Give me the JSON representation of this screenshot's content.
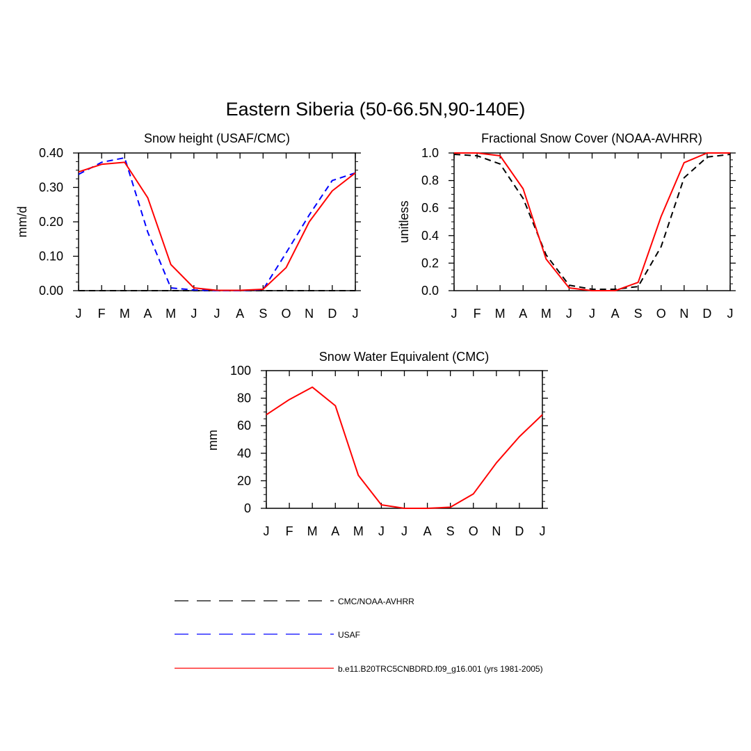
{
  "figure": {
    "title": "Eastern Siberia (50-66.5N,90-140E)"
  },
  "legend": {
    "entries": [
      {
        "label": "CMC/NOAA-AVHRR",
        "color": "#000000",
        "style": "dashed"
      },
      {
        "label": "USAF",
        "color": "#0000ff",
        "style": "dashed"
      },
      {
        "label": "b.e11.B20TRC5CNBDRD.f09_g16.001 (yrs 1981-2005)",
        "color": "#ff0000",
        "style": "solid"
      }
    ]
  },
  "chart_data": [
    {
      "type": "line",
      "title": "Snow height (USAF/CMC)",
      "xlabel": "",
      "ylabel": "mm/d",
      "categories": [
        "J",
        "F",
        "M",
        "A",
        "M",
        "J",
        "J",
        "A",
        "S",
        "O",
        "N",
        "D",
        "J"
      ],
      "ylim": [
        0,
        0.4
      ],
      "yticks": [
        "0.00",
        "0.10",
        "0.20",
        "0.30",
        "0.40"
      ],
      "series": [
        {
          "name": "CMC/NOAA-AVHRR",
          "color": "#000000",
          "style": "dashed",
          "values": [
            0,
            0,
            0,
            0,
            0,
            0,
            0,
            0,
            0,
            0,
            0,
            0,
            0
          ]
        },
        {
          "name": "USAF",
          "color": "#0000ff",
          "style": "dashed",
          "values": [
            0.338,
            0.373,
            0.386,
            0.17,
            0.008,
            0.002,
            0,
            0,
            0.003,
            0.11,
            0.22,
            0.32,
            0.342
          ]
        },
        {
          "name": "b.e11.B20TRC5CNBDRD.f09_g16.001 (yrs 1981-2005)",
          "color": "#ff0000",
          "style": "solid",
          "values": [
            0.345,
            0.367,
            0.373,
            0.27,
            0.076,
            0.008,
            0.001,
            0.001,
            0.004,
            0.067,
            0.2,
            0.29,
            0.342
          ]
        }
      ]
    },
    {
      "type": "line",
      "title": "Fractional Snow Cover (NOAA-AVHRR)",
      "xlabel": "",
      "ylabel": "unitless",
      "categories": [
        "J",
        "F",
        "M",
        "A",
        "M",
        "J",
        "J",
        "A",
        "S",
        "O",
        "N",
        "D",
        "J"
      ],
      "ylim": [
        0,
        1.0
      ],
      "yticks": [
        "0.0",
        "0.2",
        "0.4",
        "0.6",
        "0.8",
        "1.0"
      ],
      "series": [
        {
          "name": "CMC/NOAA-AVHRR",
          "color": "#000000",
          "style": "dashed",
          "values": [
            0.99,
            0.98,
            0.92,
            0.67,
            0.26,
            0.04,
            0.01,
            0.01,
            0.03,
            0.32,
            0.82,
            0.97,
            0.99
          ]
        },
        {
          "name": "b.e11.B20TRC5CNBDRD.f09_g16.001 (yrs 1981-2005)",
          "color": "#ff0000",
          "style": "solid",
          "values": [
            1.0,
            1.0,
            0.98,
            0.74,
            0.23,
            0.02,
            0.0,
            0.0,
            0.06,
            0.54,
            0.93,
            1.0,
            1.0
          ]
        }
      ]
    },
    {
      "type": "line",
      "title": "Snow Water Equivalent (CMC)",
      "xlabel": "",
      "ylabel": "mm",
      "categories": [
        "J",
        "F",
        "M",
        "A",
        "M",
        "J",
        "J",
        "A",
        "S",
        "O",
        "N",
        "D",
        "J"
      ],
      "ylim": [
        0,
        100
      ],
      "yticks": [
        "0",
        "20",
        "40",
        "60",
        "80",
        "100"
      ],
      "series": [
        {
          "name": "b.e11.B20TRC5CNBDRD.f09_g16.001 (yrs 1981-2005)",
          "color": "#ff0000",
          "style": "solid",
          "values": [
            68,
            79,
            88,
            74.5,
            24,
            2.5,
            0,
            0,
            0.8,
            10.5,
            33,
            52,
            68
          ]
        }
      ]
    }
  ]
}
